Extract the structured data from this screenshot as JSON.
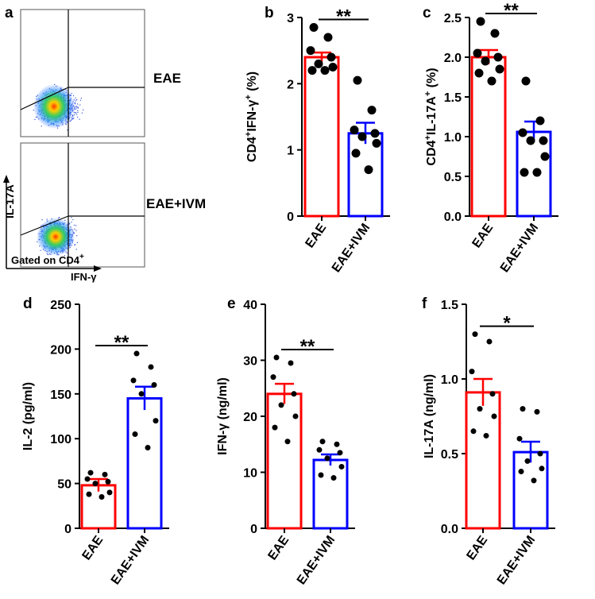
{
  "panel_a": {
    "label": "a",
    "y_axis_label": "IL-17A",
    "x_axis_label": "IFN-γ",
    "gate_text": "Gated on CD4",
    "gate_superscript": "+",
    "plots": [
      {
        "name": "EAE",
        "label": "EAE"
      },
      {
        "name": "EAE+IVM",
        "label": "EAE+IVM"
      }
    ]
  },
  "colors": {
    "eae": "#ff0000",
    "ivm": "#0000ff",
    "axis": "#000000",
    "dot": "#000000"
  },
  "chart_data": [
    {
      "id": "b",
      "type": "bar",
      "panel_label": "b",
      "ylabel_parts": [
        "CD4",
        "+",
        "IFN-γ",
        "+",
        " (%)"
      ],
      "ylim": [
        0,
        3
      ],
      "yticks": [
        0,
        1,
        2,
        3
      ],
      "ytick_labels": [
        "0",
        "1",
        "2",
        "3"
      ],
      "categories": [
        "EAE",
        "EAE+IVM"
      ],
      "means": [
        2.4,
        1.25
      ],
      "sems": [
        0.07,
        0.16
      ],
      "points": [
        [
          2.85,
          2.7,
          2.5,
          2.4,
          2.3,
          2.25,
          2.2,
          2.2
        ],
        [
          2.05,
          1.6,
          1.3,
          1.25,
          1.2,
          1.1,
          0.95,
          0.7
        ]
      ],
      "significance": "**",
      "dot_size": "large"
    },
    {
      "id": "c",
      "type": "bar",
      "panel_label": "c",
      "ylabel_parts": [
        "CD4",
        "+",
        "IL-17A",
        "+",
        " (%)"
      ],
      "ylim": [
        0,
        2.5
      ],
      "yticks": [
        0,
        0.5,
        1.0,
        1.5,
        2.0,
        2.5
      ],
      "ytick_labels": [
        "0.0",
        "0.5",
        "1.0",
        "1.5",
        "2.0",
        "2.5"
      ],
      "categories": [
        "EAE",
        "EAE+IVM"
      ],
      "means": [
        2.0,
        1.06
      ],
      "sems": [
        0.09,
        0.13
      ],
      "points": [
        [
          2.45,
          2.3,
          2.05,
          2.0,
          1.95,
          1.85,
          1.8,
          1.7
        ],
        [
          1.7,
          1.2,
          1.05,
          0.95,
          0.95,
          0.75,
          0.55,
          0.55
        ]
      ],
      "significance": "**",
      "dot_size": "large"
    },
    {
      "id": "d",
      "type": "bar",
      "panel_label": "d",
      "ylabel_parts": [
        "IL-2 (pg/ml)"
      ],
      "ylim": [
        0,
        250
      ],
      "yticks": [
        0,
        50,
        100,
        150,
        200,
        250
      ],
      "ytick_labels": [
        "0",
        "50",
        "100",
        "150",
        "200",
        "250"
      ],
      "categories": [
        "EAE",
        "EAE+IVM"
      ],
      "means": [
        48,
        145
      ],
      "sems": [
        7,
        13
      ],
      "points": [
        [
          62,
          60,
          55,
          52,
          50,
          40,
          38,
          35
        ],
        [
          195,
          180,
          165,
          160,
          150,
          120,
          105,
          90
        ]
      ],
      "significance": "**",
      "dot_size": "small"
    },
    {
      "id": "e",
      "type": "bar",
      "panel_label": "e",
      "ylabel_parts": [
        "IFN-γ (ng/ml)"
      ],
      "ylim": [
        0,
        40
      ],
      "yticks": [
        0,
        10,
        20,
        30,
        40
      ],
      "ytick_labels": [
        "0",
        "10",
        "20",
        "30",
        "40"
      ],
      "categories": [
        "EAE",
        "EAE+IVM"
      ],
      "means": [
        24,
        12.2
      ],
      "sems": [
        1.8,
        1.0
      ],
      "points": [
        [
          30.5,
          29.5,
          27,
          24,
          22,
          20,
          18,
          15.5
        ],
        [
          15.5,
          15,
          14,
          13.5,
          12.5,
          11,
          9.5,
          9
        ]
      ],
      "significance": "**",
      "dot_size": "small"
    },
    {
      "id": "f",
      "type": "bar",
      "panel_label": "f",
      "ylabel_parts": [
        "IL-17A (ng/ml)"
      ],
      "ylim": [
        0,
        1.5
      ],
      "yticks": [
        0,
        0.5,
        1.0,
        1.5
      ],
      "ytick_labels": [
        "0.0",
        "0.5",
        "1.0",
        "1.5"
      ],
      "categories": [
        "EAE",
        "EAE+IVM"
      ],
      "means": [
        0.91,
        0.51
      ],
      "sems": [
        0.09,
        0.07
      ],
      "points": [
        [
          1.3,
          1.25,
          1.05,
          0.9,
          0.8,
          0.75,
          0.65,
          0.62
        ],
        [
          0.8,
          0.78,
          0.6,
          0.5,
          0.45,
          0.4,
          0.38,
          0.32
        ]
      ],
      "significance": "*",
      "dot_size": "small"
    }
  ]
}
